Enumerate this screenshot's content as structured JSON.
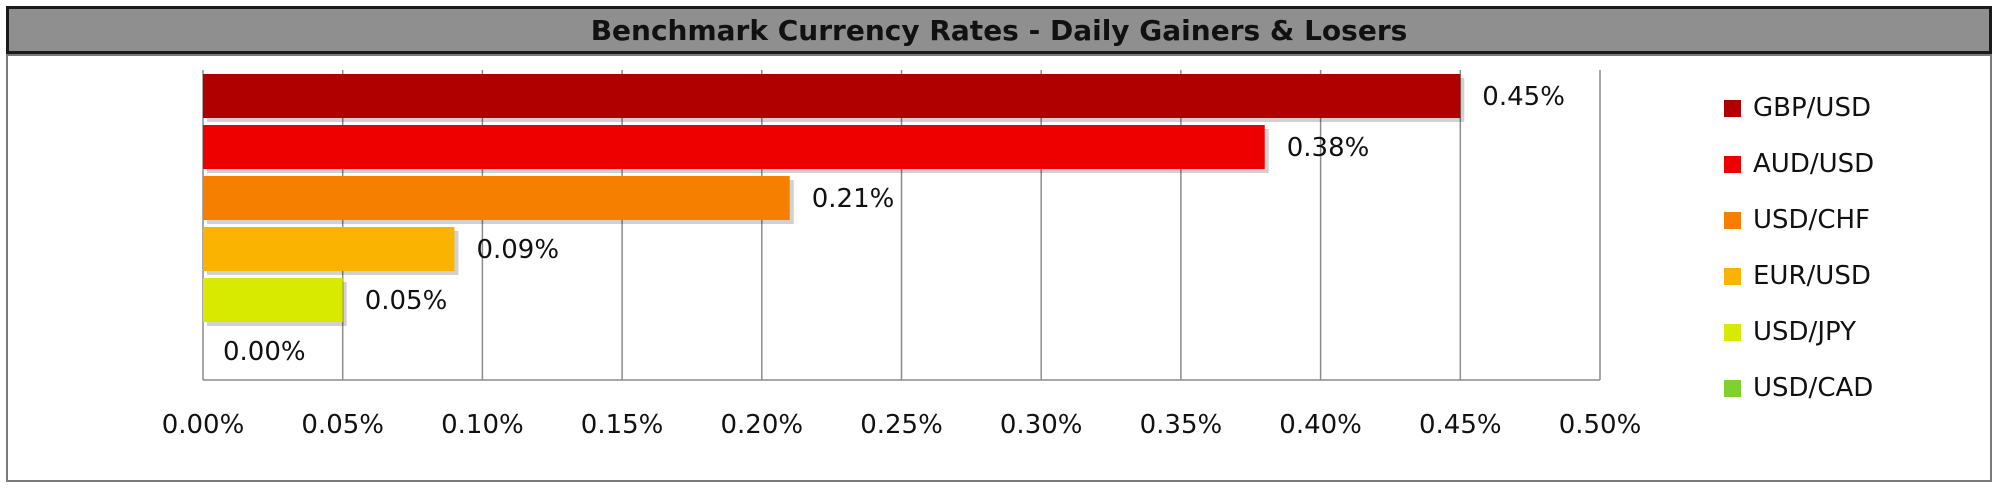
{
  "title": "Benchmark Currency Rates - Daily Gainers & Losers",
  "chart_data": {
    "type": "bar",
    "orientation": "horizontal",
    "title": "Benchmark Currency Rates - Daily Gainers & Losers",
    "categories": [
      "GBP/USD",
      "AUD/USD",
      "USD/CHF",
      "EUR/USD",
      "USD/JPY",
      "USD/CAD"
    ],
    "values": [
      0.45,
      0.38,
      0.21,
      0.09,
      0.05,
      0.0
    ],
    "data_labels": [
      "0.45%",
      "0.38%",
      "0.21%",
      "0.09%",
      "0.05%",
      "0.00%"
    ],
    "colors": [
      "#b00000",
      "#ee0000",
      "#f77f00",
      "#f9b300",
      "#d8ea00",
      "#7fd12b"
    ],
    "xlim": [
      0,
      0.5
    ],
    "x_ticks": [
      0,
      0.05,
      0.1,
      0.15,
      0.2,
      0.25,
      0.3,
      0.35,
      0.4,
      0.45,
      0.5
    ],
    "x_tick_labels": [
      "0.00%",
      "0.05%",
      "0.10%",
      "0.15%",
      "0.20%",
      "0.25%",
      "0.30%",
      "0.35%",
      "0.40%",
      "0.45%",
      "0.50%"
    ],
    "grid": true,
    "legend_position": "right",
    "legend": [
      {
        "label": "GBP/USD",
        "color": "#b00000"
      },
      {
        "label": "AUD/USD",
        "color": "#ee0000"
      },
      {
        "label": "USD/CHF",
        "color": "#f77f00"
      },
      {
        "label": "EUR/USD",
        "color": "#f9b300"
      },
      {
        "label": "USD/JPY",
        "color": "#d8ea00"
      },
      {
        "label": "USD/CAD",
        "color": "#7fd12b"
      }
    ],
    "xlabel": "",
    "ylabel": ""
  }
}
